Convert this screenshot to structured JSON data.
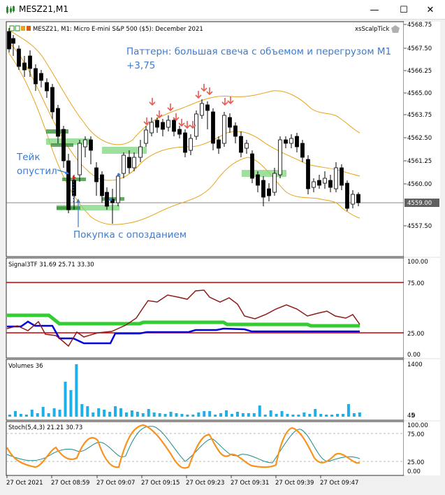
{
  "window": {
    "title": "MESZ21,M1",
    "minimize": "—",
    "maximize": "☐",
    "close": "✕"
  },
  "chart": {
    "header": "MESZ21, M1:  Micro E-mini S&P 500 ($5): December 2021",
    "indicator_name": "xsScalpTick",
    "annotation_pattern_line1": "Паттерн: большая свеча с объемом и перегрузом М1",
    "annotation_pattern_line2": "+3,75",
    "annotation_take_line1": "Тейк",
    "annotation_take_line2": "опустил",
    "annotation_buy": "Покупка с опозданием",
    "price_labels": [
      "4568.75",
      "4567.50",
      "4566.25",
      "4565.00",
      "4563.75",
      "4562.50",
      "4561.25",
      "4560.00",
      "4557.50"
    ],
    "current_price": "4559.00"
  },
  "signal_panel": {
    "label": "Signal3TF 31.69 25.71 33.30",
    "levels": [
      "100.00",
      "75.00",
      "25.00",
      "0.00"
    ]
  },
  "volume_panel": {
    "label": "Volumes 36",
    "levels": [
      "1400",
      "45",
      "0"
    ]
  },
  "stoch_panel": {
    "label": "Stoch(5,4,3) 21.21 30.73",
    "levels": [
      "100.00",
      "75.00",
      "25.00",
      "0.00"
    ]
  },
  "time_axis": [
    "27 Oct 2021",
    "27 Oct 08:59",
    "27 Oct 09:07",
    "27 Oct 09:15",
    "27 Oct 09:23",
    "27 Oct 09:31",
    "27 Oct 09:39",
    "27 Oct 09:47"
  ],
  "colors": {
    "bull_candle": "#ffffff",
    "bear_candle": "#000000",
    "band": "#e8a317",
    "annotation_text": "#3a7bd5",
    "signal_red": "#cc0000",
    "signal_green": "#33cc33",
    "signal_blue": "#0000dd",
    "signal_darkred": "#8b1a1a",
    "volume": "#1eaee8",
    "stoch_main": "#f7931e",
    "stoch_signal": "#1a8a8a",
    "marker_green": "#2e8b2e"
  }
}
